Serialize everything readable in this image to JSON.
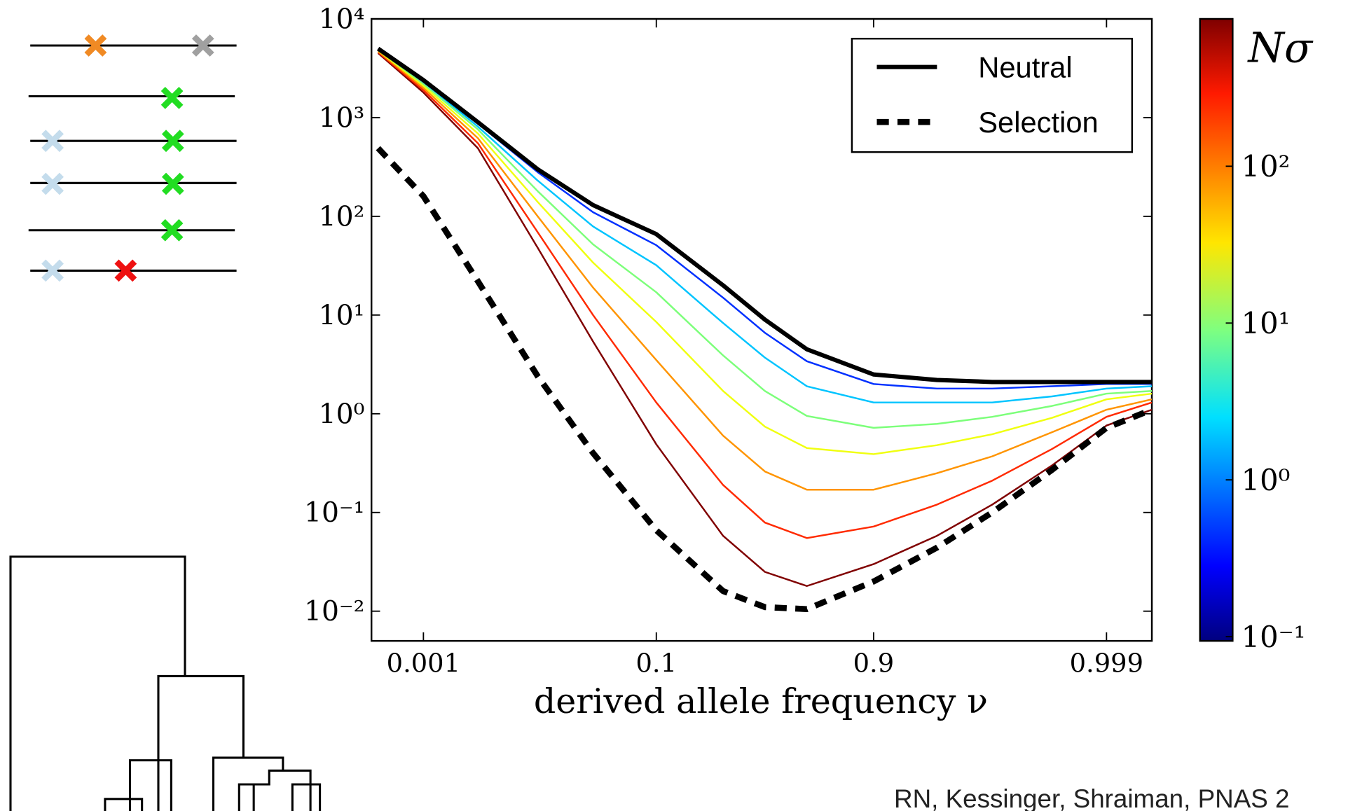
{
  "chart_data": {
    "type": "line",
    "xscale": "logit",
    "yscale": "log",
    "xlabel": "derived allele frequency ν",
    "x": [
      0.0004,
      0.001,
      0.003,
      0.01,
      0.03,
      0.1,
      0.3,
      0.5,
      0.7,
      0.9,
      0.97,
      0.99,
      0.997,
      0.999,
      0.9996
    ],
    "xlim": [
      0.00035,
      0.9996
    ],
    "xticks": [
      0.001,
      0.1,
      0.9,
      0.999
    ],
    "ylim": [
      0.005,
      10000
    ],
    "yticks": [
      {
        "value": 0.01,
        "label": "10⁻²"
      },
      {
        "value": 0.1,
        "label": "10⁻¹"
      },
      {
        "value": 1,
        "label": "10⁰"
      },
      {
        "value": 10,
        "label": "10¹"
      },
      {
        "value": 100,
        "label": "10²"
      },
      {
        "value": 1000,
        "label": "10³"
      },
      {
        "value": 10000,
        "label": "10⁴"
      }
    ],
    "grid": false,
    "legend": "upper right",
    "series": [
      {
        "color": "#800000",
        "values": [
          4500,
          1800,
          490,
          48,
          5.4,
          0.49,
          0.058,
          0.025,
          0.018,
          0.03,
          0.058,
          0.12,
          0.3,
          0.76,
          1.1
        ]
      },
      {
        "color": "#ff2a00",
        "values": [
          4600,
          1900,
          550,
          69,
          10,
          1.3,
          0.19,
          0.079,
          0.055,
          0.072,
          0.12,
          0.21,
          0.44,
          0.93,
          1.3
        ]
      },
      {
        "color": "#ff9400",
        "values": [
          4700,
          2000,
          620,
          100,
          19,
          3.5,
          0.6,
          0.26,
          0.17,
          0.17,
          0.25,
          0.37,
          0.65,
          1.1,
          1.4
        ]
      },
      {
        "color": "#f0ff10",
        "values": [
          4800,
          2100,
          690,
          140,
          34,
          8.5,
          1.7,
          0.74,
          0.45,
          0.39,
          0.48,
          0.62,
          0.91,
          1.4,
          1.6
        ]
      },
      {
        "color": "#7cff7a",
        "values": [
          4900,
          2200,
          760,
          180,
          52,
          17,
          3.9,
          1.7,
          0.95,
          0.72,
          0.79,
          0.93,
          1.2,
          1.6,
          1.7
        ]
      },
      {
        "color": "#00c4ff",
        "values": [
          4900,
          2300,
          810,
          230,
          79,
          32,
          8.3,
          3.7,
          1.9,
          1.3,
          1.3,
          1.3,
          1.5,
          1.8,
          1.9
        ]
      },
      {
        "color": "#0030ff",
        "values": [
          5000,
          2300,
          870,
          280,
          110,
          51,
          15,
          6.6,
          3.4,
          2.0,
          1.8,
          1.8,
          1.9,
          2.0,
          2.0
        ]
      },
      {
        "name": "Neutral",
        "color": "#000000",
        "style": "solid",
        "values": [
          5000,
          2400,
          900,
          300,
          130,
          66,
          20,
          9,
          4.5,
          2.5,
          2.2,
          2.1,
          2.1,
          2.1,
          2.1
        ]
      },
      {
        "name": "Selection",
        "color": "#000000",
        "style": "dashed",
        "values": [
          490,
          160,
          22,
          2.4,
          0.4,
          0.066,
          0.016,
          0.011,
          0.0105,
          0.02,
          0.044,
          0.1,
          0.27,
          0.72,
          1.1
        ]
      }
    ],
    "colorbar": {
      "label": "Nσ",
      "scale": "log",
      "lim": [
        0.094,
        870
      ],
      "ticks": [
        {
          "value": 0.1,
          "label": "10⁻¹"
        },
        {
          "value": 1,
          "label": "10⁰"
        },
        {
          "value": 10,
          "label": "10¹"
        },
        {
          "value": 100,
          "label": "10²"
        }
      ]
    },
    "credit": "RN, Kessinger, Shraiman, PNAS 2"
  }
}
